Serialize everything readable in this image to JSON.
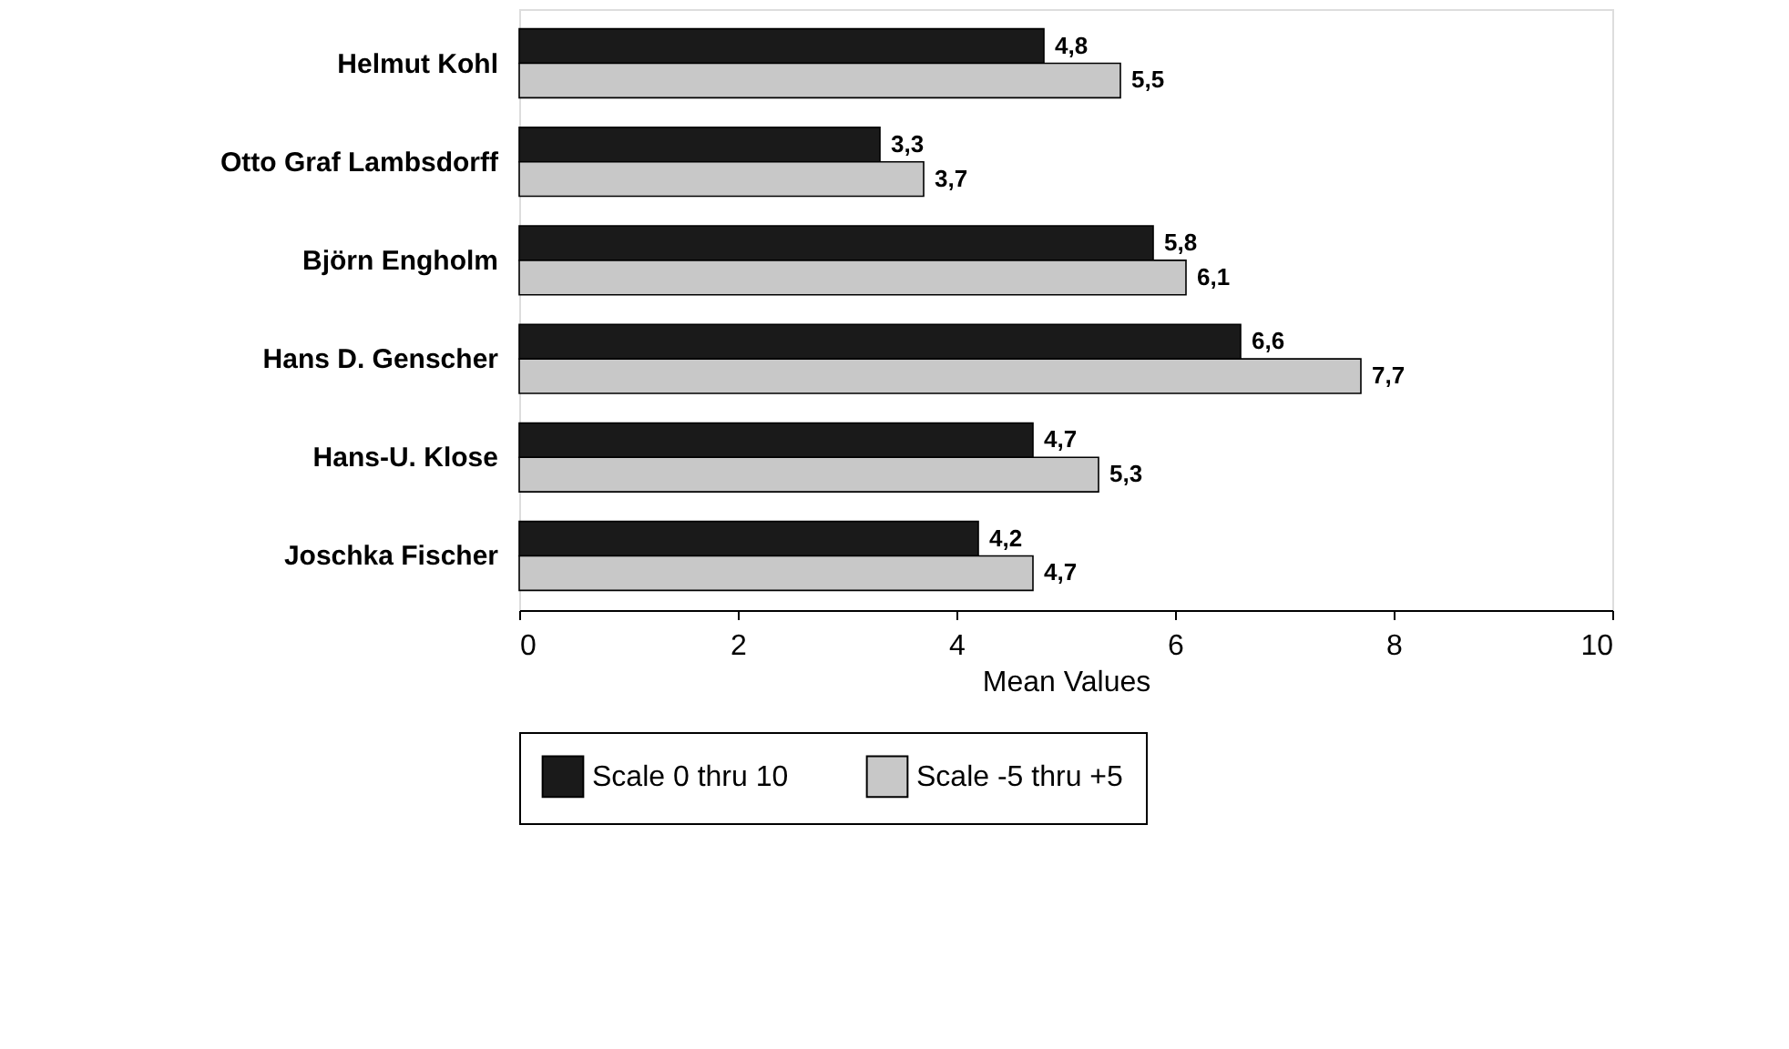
{
  "chart_data": {
    "type": "bar",
    "orientation": "horizontal",
    "xlabel": "Mean Values",
    "categories": [
      "Helmut Kohl",
      "Otto Graf Lambsdorff",
      "Björn Engholm",
      "Hans D. Genscher",
      "Hans-U. Klose",
      "Joschka Fischer"
    ],
    "series": [
      {
        "name": "Scale 0 thru 10",
        "color": "#1a1a1a",
        "values": [
          4.8,
          3.3,
          5.8,
          6.6,
          4.7,
          4.2
        ],
        "value_labels": [
          "4,8",
          "3,3",
          "5,8",
          "6,6",
          "4,7",
          "4,2"
        ]
      },
      {
        "name": "Scale -5 thru +5",
        "color": "#c8c8c8",
        "values": [
          5.5,
          3.7,
          6.1,
          7.7,
          5.3,
          4.7
        ],
        "value_labels": [
          "5,5",
          "3,7",
          "6,1",
          "7,7",
          "5,3",
          "4,7"
        ]
      }
    ],
    "xlim": [
      0,
      10
    ],
    "xticks": [
      0,
      2,
      4,
      6,
      8,
      10
    ],
    "grid": false,
    "legend": "bottom"
  }
}
